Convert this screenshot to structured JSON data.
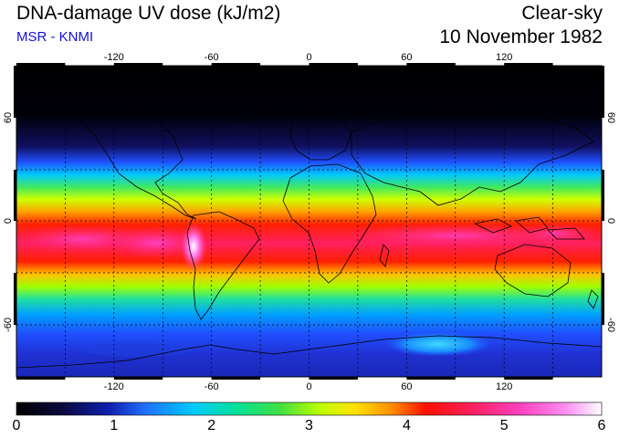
{
  "header": {
    "title": "DNA-damage UV dose (kJ/m2)",
    "subtitle": "MSR - KNMI",
    "sky_condition": "Clear-sky",
    "date": "10 November 1982"
  },
  "map": {
    "lon_ticks": [
      "-120",
      "-60",
      "0",
      "60",
      "120"
    ],
    "lat_ticks": [
      "60",
      "0",
      "-60"
    ],
    "projection": "equirectangular",
    "gridlines": "dashed, every 30 degrees"
  },
  "colorbar": {
    "min": 0,
    "max": 6,
    "labels": [
      "0",
      "1",
      "2",
      "3",
      "4",
      "5",
      "6"
    ],
    "colors": [
      "#000000",
      "#1020a0",
      "#2060ff",
      "#00c0ff",
      "#00e0c0",
      "#40e060",
      "#a0ff00",
      "#ffff00",
      "#ffa000",
      "#ff2000",
      "#ff2060",
      "#ff40c0",
      "#ff80f0",
      "#ffffff"
    ]
  }
}
